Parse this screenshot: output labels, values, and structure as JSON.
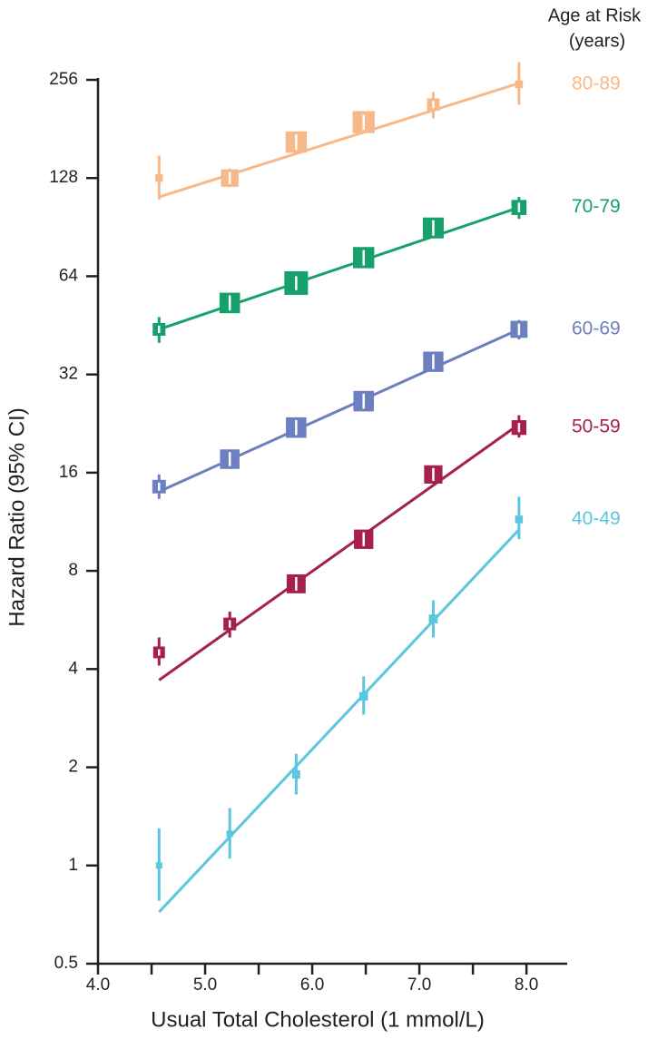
{
  "chart_data": {
    "type": "line",
    "x_label": "Usual Total Cholesterol (1 mmol/L)",
    "y_label": "Hazard Ratio (95% CI)",
    "legend_title": [
      "Age at Risk",
      "(years)"
    ],
    "xlim": [
      4.0,
      8.38
    ],
    "xticks": [
      {
        "value": 4,
        "label": "4.0"
      },
      {
        "value": 5,
        "label": "5.0"
      },
      {
        "value": 6,
        "label": "6.0"
      },
      {
        "value": 7,
        "label": "7.0"
      },
      {
        "value": 8,
        "label": "8.0"
      }
    ],
    "xminor_ticks": [
      4.5,
      5.5,
      6.5,
      7.5
    ],
    "ylim": [
      0.5,
      256
    ],
    "ylog": true,
    "yticks": [
      0.5,
      1,
      2,
      4,
      8,
      16,
      32,
      64,
      128,
      256
    ],
    "x": [
      4.57,
      5.23,
      5.85,
      6.48,
      7.13,
      7.93
    ],
    "series": [
      {
        "name": "80-89",
        "color": "#f7b98a",
        "values": [
          128,
          128,
          165,
          190,
          215,
          248
        ],
        "ci_low": [
          110,
          120,
          156,
          180,
          195,
          215
        ],
        "ci_high": [
          150,
          137,
          174,
          200,
          235,
          290
        ],
        "fit_x": [
          4.57,
          7.93
        ],
        "fit_values": [
          112,
          250
        ]
      },
      {
        "name": "70-79",
        "color": "#16a06b",
        "values": [
          44,
          53,
          61,
          73,
          90,
          104
        ],
        "ci_low": [
          40,
          50,
          58,
          69,
          85,
          96
        ],
        "ci_high": [
          48,
          56,
          64,
          77,
          95,
          112
        ],
        "fit_x": [
          4.57,
          7.93
        ],
        "fit_values": [
          44,
          104
        ]
      },
      {
        "name": "60-69",
        "color": "#6b7fc1",
        "values": [
          14.5,
          17.6,
          22,
          26.5,
          35,
          44
        ],
        "ci_low": [
          13.3,
          16.6,
          20.8,
          25,
          33,
          41
        ],
        "ci_high": [
          15.8,
          18.7,
          23.3,
          28,
          37,
          47
        ],
        "fit_x": [
          4.57,
          7.93
        ],
        "fit_values": [
          14,
          44
        ]
      },
      {
        "name": "50-59",
        "color": "#a51f4f",
        "values": [
          4.5,
          5.5,
          7.3,
          10,
          15.8,
          22
        ],
        "ci_low": [
          4.1,
          5.0,
          6.9,
          9.4,
          14.8,
          20.5
        ],
        "ci_high": [
          5.0,
          6.0,
          7.8,
          10.6,
          16.8,
          24
        ],
        "fit_x": [
          4.57,
          7.93
        ],
        "fit_values": [
          3.7,
          22.5
        ]
      },
      {
        "name": "40-49",
        "color": "#5bc6e0",
        "values": [
          1.0,
          1.25,
          1.9,
          3.3,
          5.7,
          11.5
        ],
        "ci_low": [
          0.78,
          1.05,
          1.65,
          2.9,
          5.0,
          10
        ],
        "ci_high": [
          1.3,
          1.5,
          2.2,
          3.8,
          6.5,
          13.5
        ],
        "fit_x": [
          4.57,
          7.93
        ],
        "fit_values": [
          0.72,
          10.7
        ]
      }
    ]
  }
}
